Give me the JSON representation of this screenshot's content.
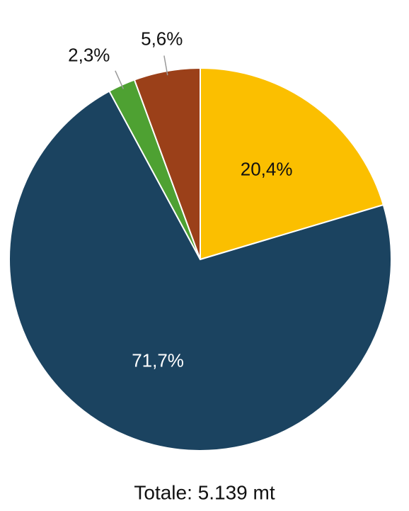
{
  "chart_data": {
    "type": "pie",
    "title": "Totale: 5.139 mt",
    "values": [
      20.4,
      71.7,
      2.3,
      5.6
    ],
    "value_labels": [
      "20,4%",
      "71,7%",
      "2,3%",
      "5,6%"
    ],
    "colors": [
      "#fbbf00",
      "#1b4360",
      "#4ea132",
      "#9b4019"
    ]
  }
}
